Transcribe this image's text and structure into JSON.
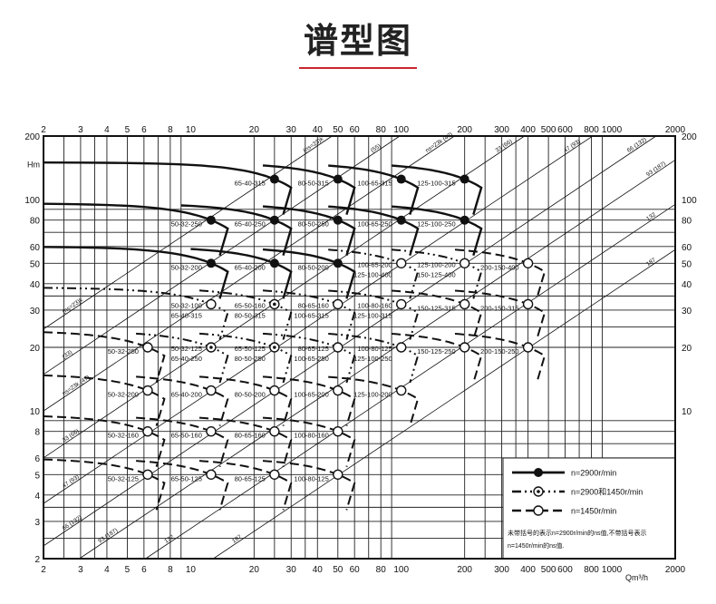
{
  "header": {
    "title": "谱型图",
    "accent_color": "#c8262e"
  },
  "chart_data": {
    "type": "line",
    "x_scale": "log",
    "y_scale": "log",
    "xlim": [
      2,
      2000
    ],
    "ylim": [
      2,
      200
    ],
    "xlabel": "Qm³/h",
    "ylabel": "Hm",
    "grid": true,
    "x_ticks": [
      "2",
      "3",
      "4",
      "5",
      "6",
      "8",
      "10",
      "20",
      "30",
      "40",
      "50",
      "60",
      "80",
      "100",
      "200",
      "300",
      "400",
      "500",
      "600",
      "800",
      "1000",
      "2000"
    ],
    "y_ticks_left": [
      "200",
      "100",
      "80",
      "60",
      "50",
      "40",
      "30",
      "20",
      "10",
      "8",
      "6",
      "5",
      "4",
      "3",
      "2"
    ],
    "y_ticks_right": [
      "200",
      "100",
      "80",
      "60",
      "50",
      "40",
      "30",
      "20",
      "10"
    ],
    "ns_lines": [
      {
        "h_at_q2": 24.4,
        "label_low": "(ns=23)k",
        "label_high": "(ns=23)k"
      },
      {
        "h_at_q2": 14.9,
        "label_low": "(33)",
        "label_high": "(55)"
      },
      {
        "h_at_q2": 10,
        "label_low": "ns=23k (47)",
        "label_high": "ns=23k (47)"
      },
      {
        "h_at_q2": 6,
        "label_low": "33 (66)",
        "label_high": "33 (66)"
      },
      {
        "h_at_q2": 3.65,
        "label_low": "47 (93)",
        "label_high": "47 (93)"
      },
      {
        "h_at_q2": 2.3,
        "label_low": "66 (132)",
        "label_high": "66 (132)"
      },
      {
        "h_at_q2": 1.54,
        "label_low": "93 (187)",
        "label_high": "93 (187)"
      },
      {
        "h_at_q2": 0.95,
        "label_low": "132",
        "label_high": "132"
      },
      {
        "h_at_q2": 0.58,
        "label_low": "187",
        "label_high": "187"
      }
    ],
    "pumps": [
      {
        "models": [
          "65-40-315"
        ],
        "q": 25,
        "h": 125,
        "from": 2,
        "speed": "2900"
      },
      {
        "models": [
          "80-50-315"
        ],
        "q": 50,
        "h": 125,
        "from": 22,
        "speed": "2900"
      },
      {
        "models": [
          "100-65-315"
        ],
        "q": 100,
        "h": 125,
        "from": 45,
        "speed": "2900"
      },
      {
        "models": [
          "125-100-315"
        ],
        "q": 200,
        "h": 125,
        "from": 90,
        "speed": "2900"
      },
      {
        "models": [
          "50-32-250"
        ],
        "q": 12.5,
        "h": 80,
        "from": 2,
        "speed": "2900"
      },
      {
        "models": [
          "65-40-250"
        ],
        "q": 25,
        "h": 80,
        "from": 9,
        "speed": "2900"
      },
      {
        "models": [
          "80-50-250"
        ],
        "q": 50,
        "h": 80,
        "from": 22,
        "speed": "2900"
      },
      {
        "models": [
          "100-65-250"
        ],
        "q": 100,
        "h": 80,
        "from": 45,
        "speed": "2900"
      },
      {
        "models": [
          "125-100-250"
        ],
        "q": 200,
        "h": 80,
        "from": 90,
        "speed": "2900"
      },
      {
        "models": [
          "50-32-200"
        ],
        "q": 12.5,
        "h": 50,
        "from": 2,
        "speed": "2900"
      },
      {
        "models": [
          "65-40-200"
        ],
        "q": 25,
        "h": 50,
        "from": 10,
        "speed": "2900"
      },
      {
        "models": [
          "80-50-200"
        ],
        "q": 50,
        "h": 50,
        "from": 22,
        "speed": "2900"
      },
      {
        "models": [
          "100-65-200",
          "125-100-400"
        ],
        "q": 100,
        "h": 50,
        "from": 45,
        "speed": "1450",
        "line": "mixed"
      },
      {
        "models": [
          "125-100-200",
          "150-125-400"
        ],
        "q": 200,
        "h": 50,
        "from": 90,
        "speed": "1450",
        "line": "mixed"
      },
      {
        "models": [
          "200-150-400"
        ],
        "q": 400,
        "h": 50,
        "from": 180,
        "speed": "1450"
      },
      {
        "models": [
          "50-32-100",
          "65-40-315"
        ],
        "q": 12.5,
        "h": 32,
        "from": 2,
        "speed": "1450",
        "line": "mixed"
      },
      {
        "models": [
          "65-50-160",
          "80-50-315"
        ],
        "q": 25,
        "h": 32,
        "from": 11,
        "speed": "mixed"
      },
      {
        "models": [
          "80-65-160",
          "100-65-315"
        ],
        "q": 50,
        "h": 32,
        "from": 22,
        "speed": "1450",
        "line": "mixed"
      },
      {
        "models": [
          "100-80-160",
          "125-100-315"
        ],
        "q": 100,
        "h": 32,
        "from": 45,
        "speed": "1450",
        "line": "mixed"
      },
      {
        "models": [
          "150-125-315"
        ],
        "q": 200,
        "h": 32,
        "from": 90,
        "speed": "1450"
      },
      {
        "models": [
          "200-150-315"
        ],
        "q": 400,
        "h": 32,
        "from": 180,
        "speed": "1450"
      },
      {
        "models": [
          "50-32-250"
        ],
        "q": 6.25,
        "h": 20,
        "from": 2,
        "speed": "1450"
      },
      {
        "models": [
          "50-32-125",
          "65-40-250"
        ],
        "q": 12.5,
        "h": 20,
        "from": 5.5,
        "speed": "mixed"
      },
      {
        "models": [
          "65-50-125",
          "80-50-250"
        ],
        "q": 25,
        "h": 20,
        "from": 11,
        "speed": "mixed"
      },
      {
        "models": [
          "80-65-125",
          "100-65-250"
        ],
        "q": 50,
        "h": 20,
        "from": 22,
        "speed": "1450",
        "line": "mixed"
      },
      {
        "models": [
          "100-80-125",
          "125-100-250"
        ],
        "q": 100,
        "h": 20,
        "from": 45,
        "speed": "1450",
        "line": "mixed"
      },
      {
        "models": [
          "150-125-250"
        ],
        "q": 200,
        "h": 20,
        "from": 90,
        "speed": "1450"
      },
      {
        "models": [
          "200-150-250"
        ],
        "q": 400,
        "h": 20,
        "from": 180,
        "speed": "1450"
      },
      {
        "models": [
          "50-32-200"
        ],
        "q": 6.25,
        "h": 12.5,
        "from": 2,
        "speed": "1450"
      },
      {
        "models": [
          "65-40-200"
        ],
        "q": 12.5,
        "h": 12.5,
        "from": 5.5,
        "speed": "1450"
      },
      {
        "models": [
          "80-50-200"
        ],
        "q": 25,
        "h": 12.5,
        "from": 11,
        "speed": "1450"
      },
      {
        "models": [
          "100-65-200"
        ],
        "q": 50,
        "h": 12.5,
        "from": 22,
        "speed": "1450"
      },
      {
        "models": [
          "125-100-200"
        ],
        "q": 100,
        "h": 12.5,
        "from": 45,
        "speed": "1450"
      },
      {
        "models": [
          "50-32-160"
        ],
        "q": 6.25,
        "h": 8,
        "from": 2,
        "speed": "1450"
      },
      {
        "models": [
          "65-50-160"
        ],
        "q": 12.5,
        "h": 8,
        "from": 5.5,
        "speed": "1450"
      },
      {
        "models": [
          "80-65-160"
        ],
        "q": 25,
        "h": 8,
        "from": 11,
        "speed": "1450"
      },
      {
        "models": [
          "100-80-160"
        ],
        "q": 50,
        "h": 8,
        "from": 22,
        "speed": "1450"
      },
      {
        "models": [
          "50-32-125"
        ],
        "q": 6.25,
        "h": 5,
        "from": 2,
        "speed": "1450"
      },
      {
        "models": [
          "65-50-125"
        ],
        "q": 12.5,
        "h": 5,
        "from": 5.5,
        "speed": "1450"
      },
      {
        "models": [
          "80-65-125"
        ],
        "q": 25,
        "h": 5,
        "from": 11,
        "speed": "1450"
      },
      {
        "models": [
          "100-80-125"
        ],
        "q": 50,
        "h": 5,
        "from": 22,
        "speed": "1450"
      }
    ],
    "legend": {
      "placement": "bottom-right",
      "items": [
        {
          "key": "2900",
          "label": "n=2900r/min"
        },
        {
          "key": "mixed",
          "label": "n=2900和1450r/min"
        },
        {
          "key": "1450",
          "label": "n=1450r/min"
        }
      ],
      "note_line1": "未带括号的表示n=2900r/min的ns值,不带括号表示",
      "note_line2": "n=1450r/min的ns值."
    }
  }
}
